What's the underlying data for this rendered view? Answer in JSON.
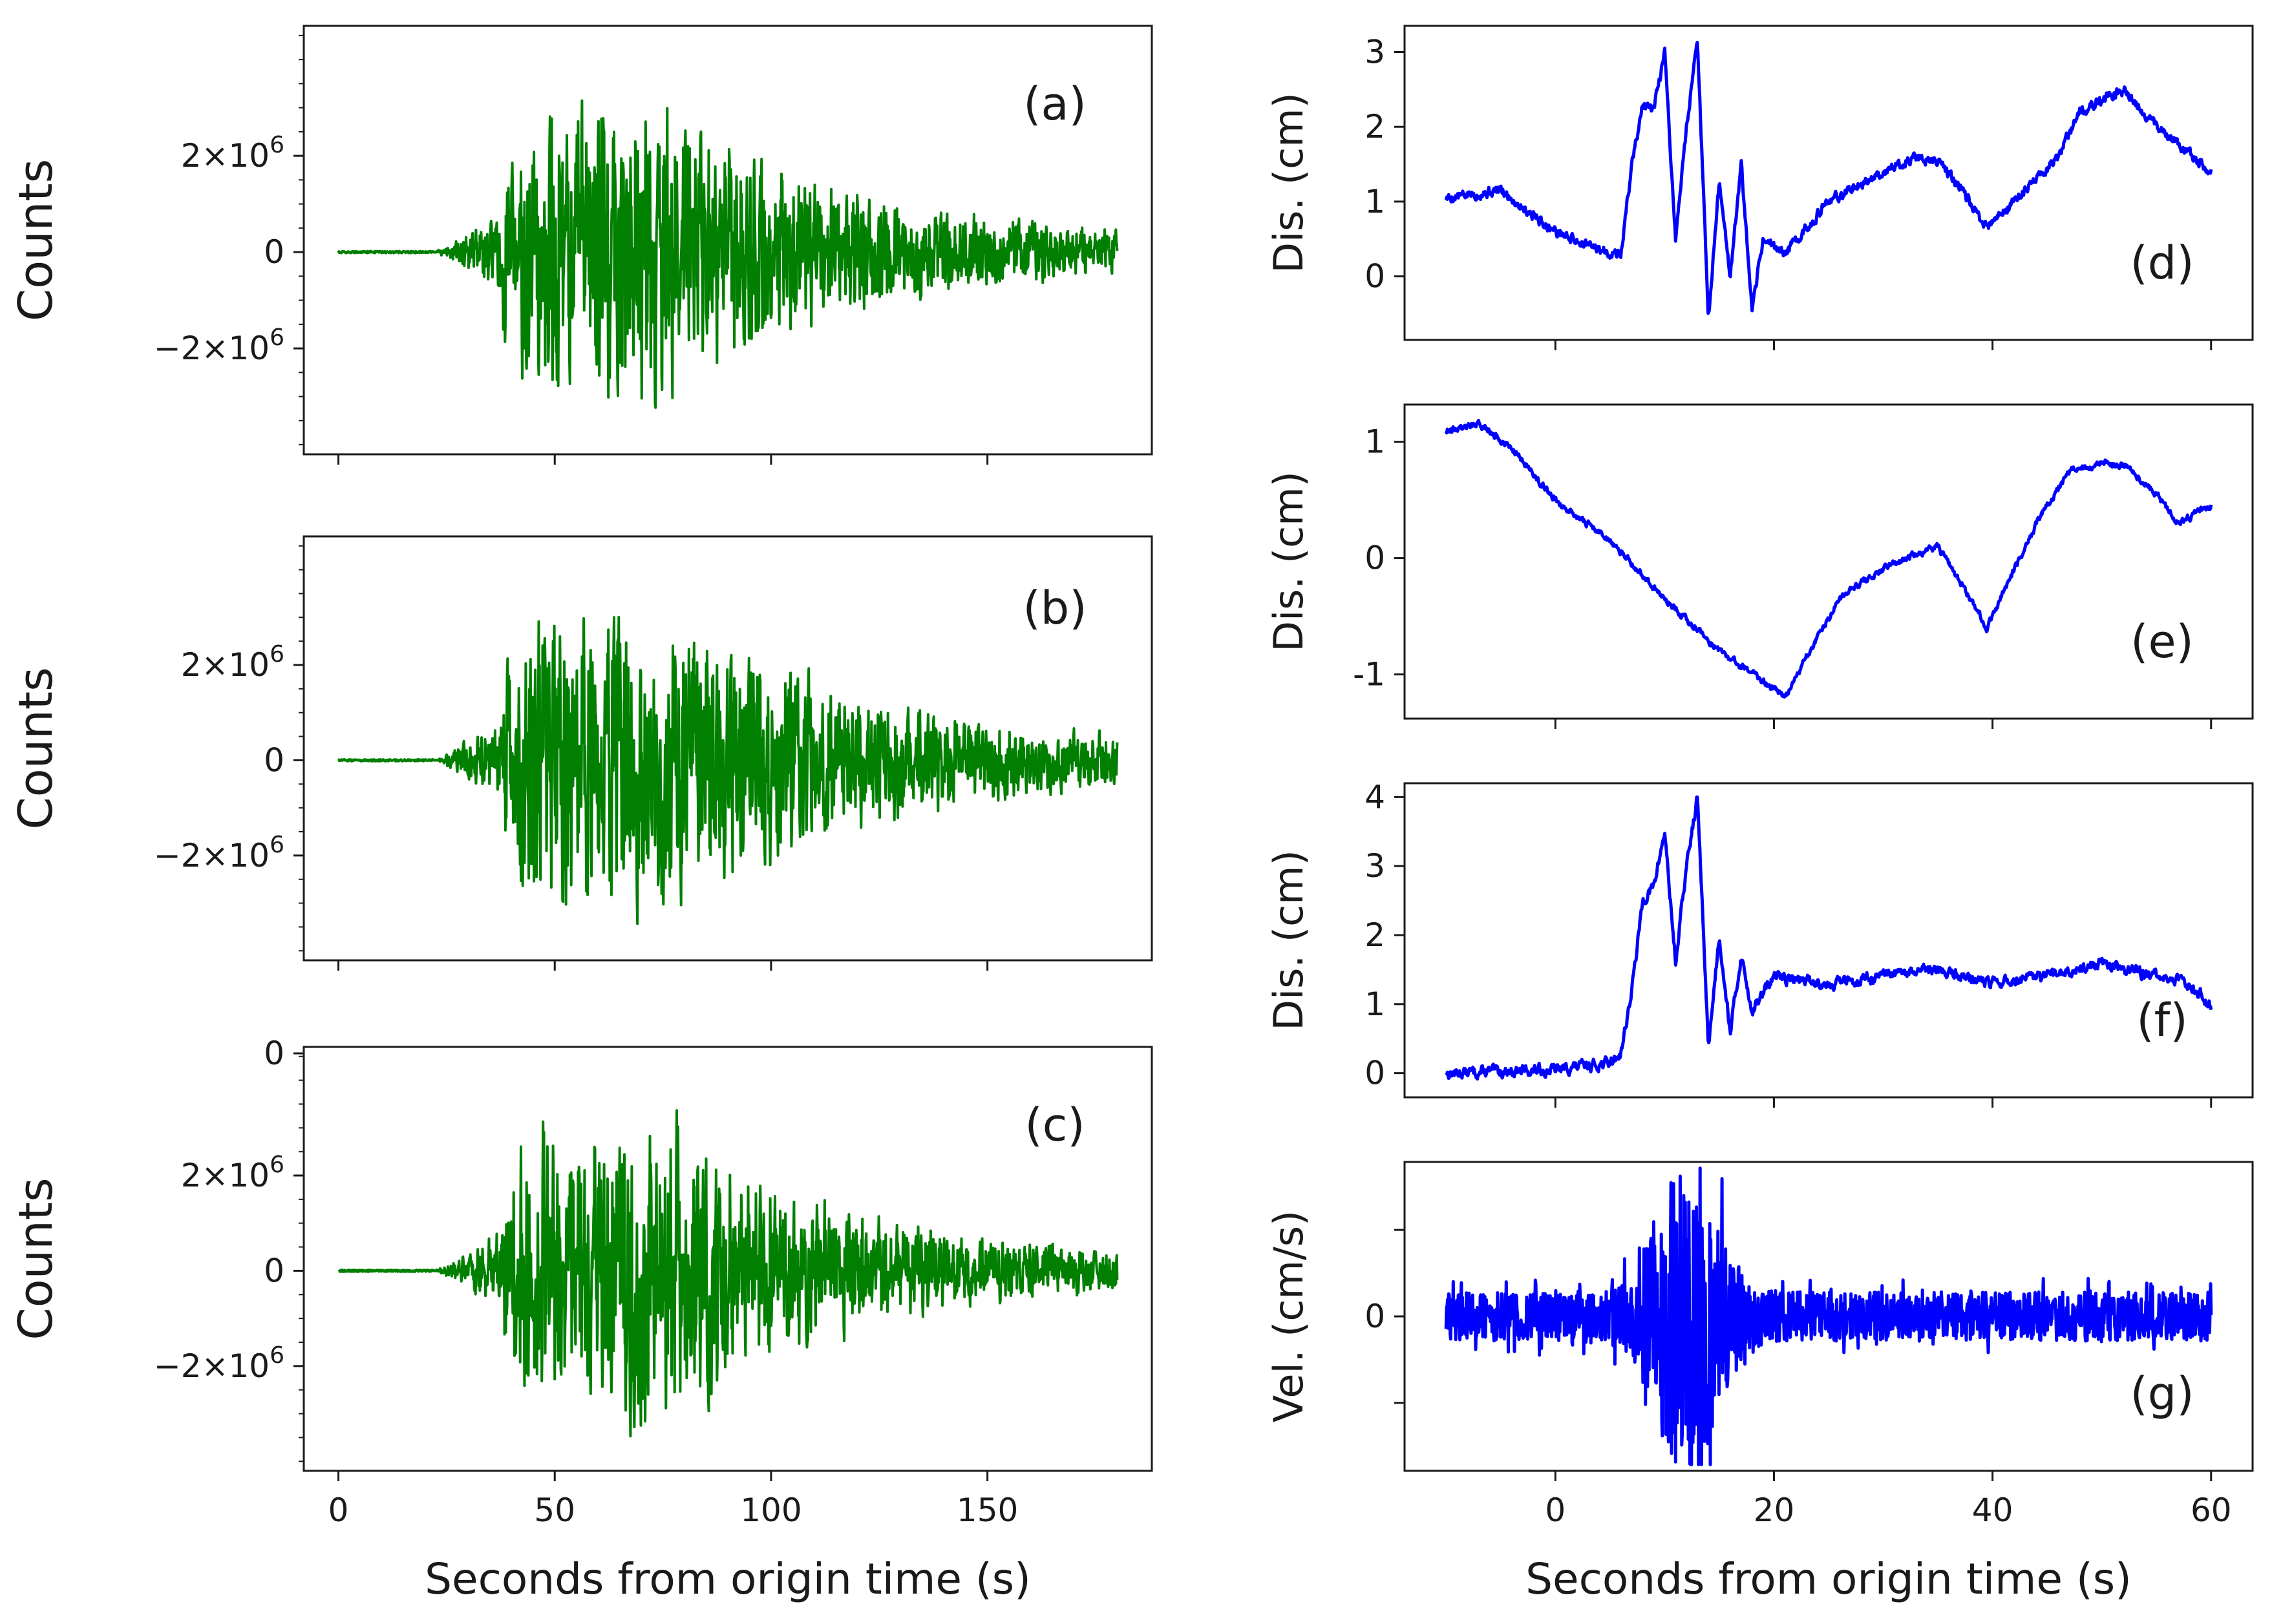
{
  "colors": {
    "left_trace": "#007f00",
    "right_trace": "#0000ff",
    "axes": "#1a1a1a",
    "background": "#ffffff"
  },
  "chart_data": [
    {
      "id": "a",
      "type": "line",
      "tag": "(a)",
      "ylabel": "Counts",
      "xlim": [
        -8,
        188
      ],
      "ylim": [
        -4200000,
        4700000
      ],
      "yticks": [
        -2000000,
        0,
        2000000
      ],
      "ytick_labels": [
        {
          "label": "−2×10",
          "exp": "6"
        },
        {
          "label": "0",
          "exp": ""
        },
        {
          "label": "2×10",
          "exp": "6"
        }
      ],
      "xticks": [
        0,
        50,
        100,
        150
      ],
      "xtick_labels": [],
      "xlabel": "",
      "trace": {
        "kind": "seismogram",
        "seed": 11,
        "t_start": 0,
        "t_end": 180,
        "onset": 22,
        "max_at": 58,
        "amp": 3300000,
        "clip": 3500000,
        "noise": 20000,
        "decay": 45
      }
    },
    {
      "id": "b",
      "type": "line",
      "tag": "(b)",
      "ylabel": "Counts",
      "xlim": [
        -8,
        188
      ],
      "ylim": [
        -4200000,
        4700000
      ],
      "yticks": [
        -2000000,
        0,
        2000000
      ],
      "ytick_labels": [
        {
          "label": "−2×10",
          "exp": "6"
        },
        {
          "label": "0",
          "exp": ""
        },
        {
          "label": "2×10",
          "exp": "6"
        }
      ],
      "xticks": [
        0,
        50,
        100,
        150
      ],
      "xtick_labels": [],
      "xlabel": "",
      "trace": {
        "kind": "seismogram",
        "seed": 23,
        "t_start": 0,
        "t_end": 180,
        "onset": 22,
        "max_at": 60,
        "amp": 3300000,
        "clip": 3500000,
        "noise": 20000,
        "decay": 48
      }
    },
    {
      "id": "c",
      "type": "line",
      "tag": "(c)",
      "ylabel": "Counts",
      "xlim": [
        -8,
        188
      ],
      "ylim": [
        -4200000,
        4700000
      ],
      "yticks": [
        -2000000,
        0,
        2000000
      ],
      "ytick_labels": [
        {
          "label": "−2×10",
          "exp": "6"
        },
        {
          "label": "0",
          "exp": ""
        },
        {
          "label": "2×10",
          "exp": "6"
        }
      ],
      "extra_ytick_labels": [
        {
          "value": 4000000,
          "label": "0"
        }
      ],
      "xticks": [
        0,
        50,
        100,
        150
      ],
      "xtick_labels": [
        "0",
        "50",
        "100",
        "150"
      ],
      "xlabel": "Seconds from origin time (s)",
      "trace": {
        "kind": "seismogram",
        "seed": 37,
        "t_start": 0,
        "t_end": 180,
        "onset": 22,
        "max_at": 60,
        "amp": 3300000,
        "clip": 3500000,
        "noise": 20000,
        "decay": 40
      }
    },
    {
      "id": "d",
      "type": "line",
      "tag": "(d)",
      "ylabel": "Dis. (cm)",
      "xlim": [
        -13.8,
        63.8
      ],
      "ylim": [
        -0.85,
        3.35
      ],
      "yticks": [
        0,
        1,
        2,
        3
      ],
      "ytick_labels": [
        "0",
        "1",
        "2",
        "3"
      ],
      "xticks": [
        0,
        20,
        40,
        60
      ],
      "xtick_labels": [],
      "xlabel": "",
      "trace": {
        "kind": "piecewise",
        "seed": 5,
        "t_start": -10,
        "t_end": 60,
        "noise": 0.06,
        "knots": [
          [
            -10,
            1.05
          ],
          [
            -5,
            1.15
          ],
          [
            0,
            0.6
          ],
          [
            4,
            0.35
          ],
          [
            6,
            0.3
          ],
          [
            7,
            1.5
          ],
          [
            8,
            2.3
          ],
          [
            9,
            2.2
          ],
          [
            10,
            3.0
          ],
          [
            11,
            0.5
          ],
          [
            12,
            2.0
          ],
          [
            13,
            3.2
          ],
          [
            14,
            -0.6
          ],
          [
            15,
            1.3
          ],
          [
            16,
            0.0
          ],
          [
            17,
            1.5
          ],
          [
            18,
            -0.5
          ],
          [
            19,
            0.5
          ],
          [
            21,
            0.3
          ],
          [
            25,
            1.0
          ],
          [
            30,
            1.4
          ],
          [
            33,
            1.6
          ],
          [
            35,
            1.55
          ],
          [
            37,
            1.2
          ],
          [
            39,
            0.7
          ],
          [
            40,
            0.7
          ],
          [
            44,
            1.3
          ],
          [
            46,
            1.6
          ],
          [
            48,
            2.2
          ],
          [
            52,
            2.5
          ],
          [
            55,
            2.0
          ],
          [
            60,
            1.4
          ]
        ]
      }
    },
    {
      "id": "e",
      "type": "line",
      "tag": "(e)",
      "ylabel": "Dis. (cm)",
      "xlim": [
        -13.8,
        63.8
      ],
      "ylim": [
        -1.38,
        1.32
      ],
      "yticks": [
        -1,
        0,
        1
      ],
      "ytick_labels": [
        "-1",
        "0",
        "1"
      ],
      "xticks": [
        0,
        20,
        40,
        60
      ],
      "xtick_labels": [],
      "xlabel": "",
      "trace": {
        "kind": "piecewise",
        "seed": 9,
        "t_start": -10,
        "t_end": 60,
        "noise": 0.025,
        "knots": [
          [
            -10,
            1.1
          ],
          [
            -7,
            1.15
          ],
          [
            -4,
            0.95
          ],
          [
            0,
            0.5
          ],
          [
            5,
            0.15
          ],
          [
            10,
            -0.35
          ],
          [
            15,
            -0.8
          ],
          [
            19,
            -1.05
          ],
          [
            21,
            -1.2
          ],
          [
            23,
            -0.85
          ],
          [
            26,
            -0.35
          ],
          [
            29,
            -0.15
          ],
          [
            32,
            0.0
          ],
          [
            35,
            0.1
          ],
          [
            37,
            -0.2
          ],
          [
            39.5,
            -0.6
          ],
          [
            41,
            -0.3
          ],
          [
            44,
            0.3
          ],
          [
            47,
            0.75
          ],
          [
            50,
            0.82
          ],
          [
            52,
            0.8
          ],
          [
            55,
            0.55
          ],
          [
            57,
            0.3
          ],
          [
            60,
            0.45
          ]
        ]
      }
    },
    {
      "id": "f",
      "type": "line",
      "tag": "(f)",
      "ylabel": "Dis. (cm)",
      "xlim": [
        -13.8,
        63.8
      ],
      "ylim": [
        -0.35,
        4.2
      ],
      "yticks": [
        0,
        1,
        2,
        3,
        4
      ],
      "ytick_labels": [
        "0",
        "1",
        "2",
        "3",
        "4"
      ],
      "xticks": [
        0,
        20,
        40,
        60
      ],
      "xtick_labels": [],
      "xlabel": "",
      "trace": {
        "kind": "piecewise",
        "seed": 13,
        "t_start": -10,
        "t_end": 60,
        "noise": 0.07,
        "knots": [
          [
            -10,
            0.0
          ],
          [
            0,
            0.05
          ],
          [
            5,
            0.15
          ],
          [
            6,
            0.3
          ],
          [
            7,
            1.2
          ],
          [
            8,
            2.5
          ],
          [
            9,
            2.7
          ],
          [
            10,
            3.5
          ],
          [
            11,
            1.6
          ],
          [
            12,
            3.0
          ],
          [
            13,
            4.0
          ],
          [
            14,
            0.4
          ],
          [
            15,
            2.0
          ],
          [
            16,
            0.6
          ],
          [
            17,
            1.7
          ],
          [
            18,
            0.9
          ],
          [
            20,
            1.4
          ],
          [
            25,
            1.3
          ],
          [
            30,
            1.4
          ],
          [
            35,
            1.5
          ],
          [
            40,
            1.3
          ],
          [
            45,
            1.4
          ],
          [
            50,
            1.6
          ],
          [
            55,
            1.4
          ],
          [
            58,
            1.3
          ],
          [
            60,
            1.0
          ]
        ]
      }
    },
    {
      "id": "g",
      "type": "line",
      "tag": "(g)",
      "ylabel": "Vel. (cm/s)",
      "xlim": [
        -13.8,
        63.8
      ],
      "ylim": [
        -1.0,
        1.0
      ],
      "yticks": [
        -0.56,
        0,
        0.56
      ],
      "ytick_labels": [
        "",
        "0",
        ""
      ],
      "xticks": [
        0,
        20,
        40,
        60
      ],
      "xtick_labels": [
        "0",
        "20",
        "40",
        "60"
      ],
      "xlabel": "Seconds from origin time (s)",
      "trace": {
        "kind": "velocity",
        "seed": 29,
        "t_start": -10,
        "t_end": 60,
        "base": 0.16,
        "burst_at": 12,
        "burst_amp": 0.9,
        "clip": 0.96
      }
    }
  ]
}
